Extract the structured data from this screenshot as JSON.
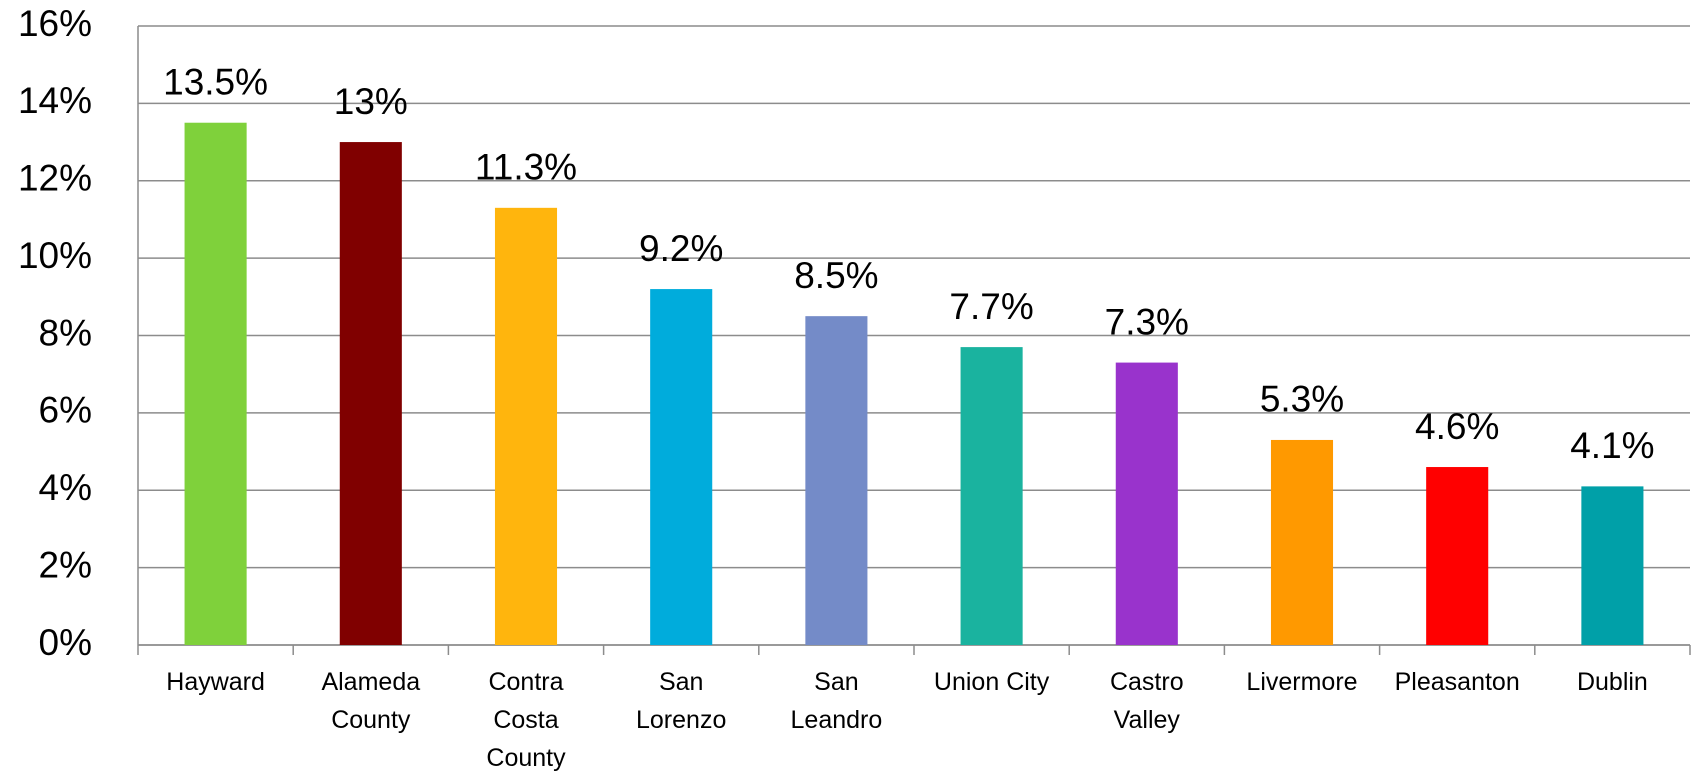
{
  "chart_data": {
    "type": "bar",
    "categories": [
      "Hayward",
      "Alameda County",
      "Contra Costa County",
      "San Lorenzo",
      "San Leandro",
      "Union City",
      "Castro Valley",
      "Livermore",
      "Pleasanton",
      "Dublin"
    ],
    "values": [
      13.5,
      13,
      11.3,
      9.2,
      8.5,
      7.7,
      7.3,
      5.3,
      4.6,
      4.1
    ],
    "value_labels": [
      "13.5%",
      "13%",
      "11.3%",
      "9.2%",
      "8.5%",
      "7.7%",
      "7.3%",
      "5.3%",
      "4.6%",
      "4.1%"
    ],
    "colors": [
      "#7fd13b",
      "#800000",
      "#ffb50d",
      "#00acdc",
      "#748bc8",
      "#1ab39f",
      "#9933cc",
      "#ff9900",
      "#ff0000",
      "#00a0a8"
    ],
    "ylim": [
      0,
      16
    ],
    "yticks": [
      {
        "value": 0,
        "label": "0%"
      },
      {
        "value": 2,
        "label": "2%"
      },
      {
        "value": 4,
        "label": "4%"
      },
      {
        "value": 6,
        "label": "6%"
      },
      {
        "value": 8,
        "label": "8%"
      },
      {
        "value": 10,
        "label": "10%"
      },
      {
        "value": 12,
        "label": "12%"
      },
      {
        "value": 14,
        "label": "14%"
      },
      {
        "value": 16,
        "label": "16%"
      }
    ],
    "grid": true
  }
}
